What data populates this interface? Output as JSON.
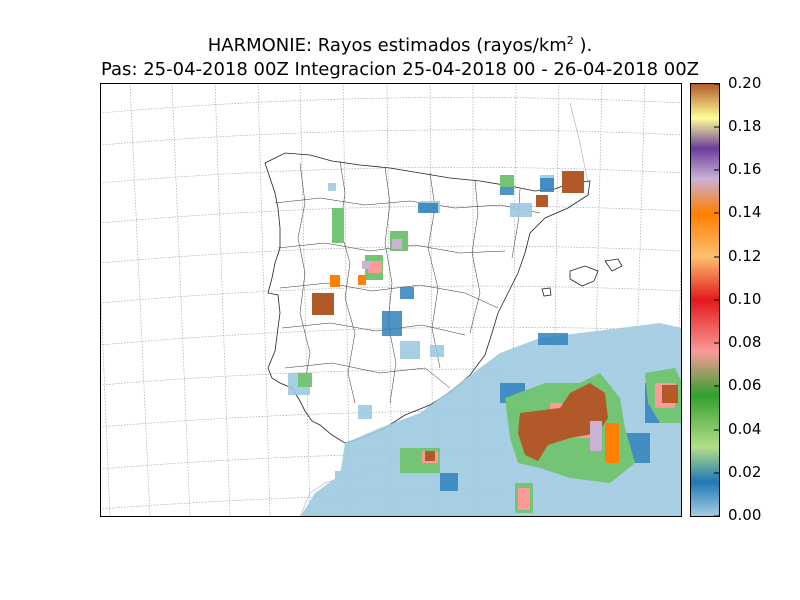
{
  "title": {
    "line1_prefix": "HARMONIE: Rayos estimados  (rayos/km",
    "line1_exp": "2",
    "line1_suffix": " ).",
    "line2": "Pas: 25-04-2018 00Z Integracion 25-04-2018 00 - 26-04-2018 00Z"
  },
  "colorbar": {
    "ticks": [
      "0.20",
      "0.18",
      "0.16",
      "0.14",
      "0.12",
      "0.10",
      "0.08",
      "0.06",
      "0.04",
      "0.02",
      "0.00"
    ],
    "colors": [
      "#9ecae1",
      "#3182bd",
      "#74c476",
      "#31a354",
      "#fb9a99",
      "#e31a1c",
      "#fdbf6f",
      "#ff7f00",
      "#cab2d6",
      "#6a3d9a",
      "#ffff99",
      "#b15928"
    ]
  },
  "map": {
    "region": "Iberian Peninsula and Balearic Islands",
    "precip_colors": {
      "light": "#9ecae1",
      "mid": "#3182bd",
      "green": "#74c476",
      "red": "#e31a1c",
      "brown": "#b15928",
      "orange": "#ff7f00"
    }
  }
}
